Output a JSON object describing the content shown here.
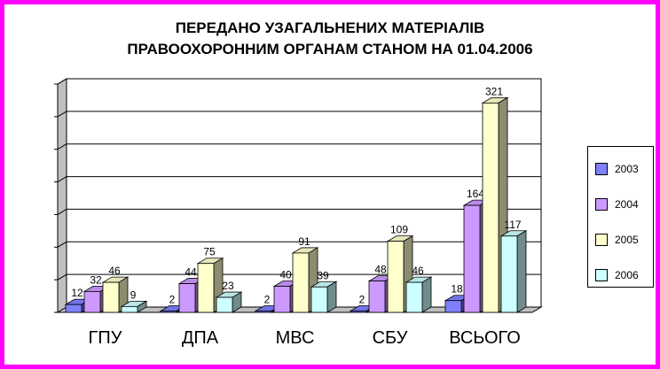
{
  "chart_data": {
    "type": "bar",
    "title_lines": [
      "ПЕРЕДАНО УЗАГАЛЬНЕНИХ МАТЕРІАЛІВ",
      "ПРАВООХОРОННИМ ОРГАНАМ СТАНОМ НА 01.04.2006"
    ],
    "categories": [
      "ГПУ",
      "ДПА",
      "МВС",
      "СБУ",
      "ВСЬОГО"
    ],
    "series": [
      {
        "name": "2003",
        "values": [
          12,
          2,
          2,
          2,
          18
        ],
        "color": "#8080ff"
      },
      {
        "name": "2004",
        "values": [
          32,
          44,
          40,
          48,
          164
        ],
        "color": "#cc99ff"
      },
      {
        "name": "2005",
        "values": [
          46,
          75,
          91,
          109,
          321
        ],
        "color": "#ffffcc"
      },
      {
        "name": "2006",
        "values": [
          9,
          23,
          39,
          46,
          117
        ],
        "color": "#ccffff"
      }
    ],
    "data_labels": [
      [
        "12",
        "2",
        "2",
        "2",
        "18"
      ],
      [
        "32",
        "44",
        "40",
        "48",
        "164"
      ],
      [
        "46",
        "75",
        "91",
        "109",
        "321"
      ],
      [
        "9",
        "23",
        "39",
        "46",
        "117"
      ]
    ],
    "ylim": [
      0,
      350
    ],
    "y_major_step": 50,
    "grid": true,
    "legend_position": "right",
    "three_d": true,
    "frame_color": "#ff00ff"
  }
}
